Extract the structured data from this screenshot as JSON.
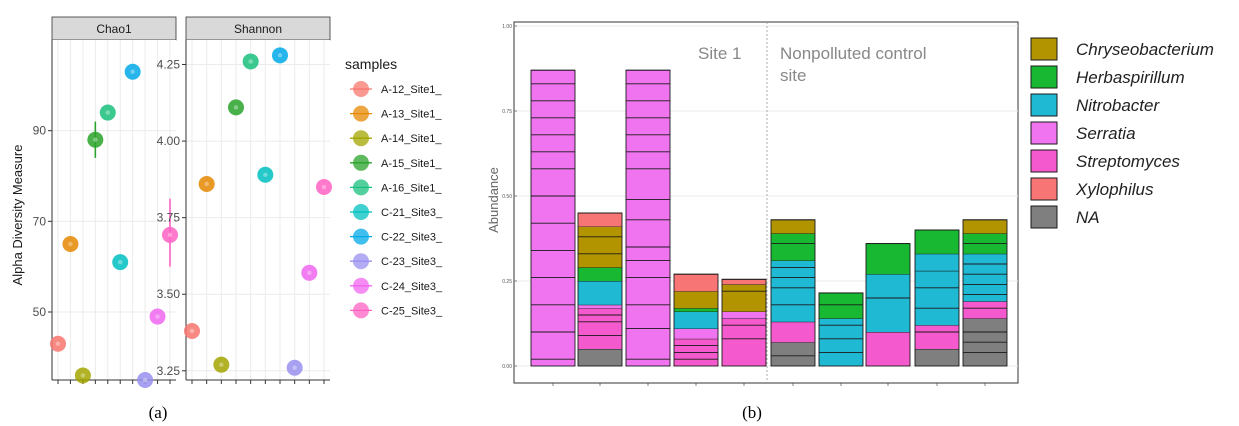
{
  "figure": {
    "label_a": "(a)",
    "label_b": "(b)"
  },
  "colors": {
    "strip_bg": "#d9d9d9",
    "grid": "#ebebeb",
    "samples": [
      "#f8766d",
      "#e58700",
      "#a3a500",
      "#2aa32a",
      "#19bf7d",
      "#00c0c0",
      "#00a9e8",
      "#9990f0",
      "#f066f0",
      "#ff61c3"
    ],
    "taxa": [
      "#b29400",
      "#19b833",
      "#1fb9d4",
      "#f074f0",
      "#f45acd",
      "#f87575",
      "#7f7f7f"
    ]
  },
  "chart_data": [
    {
      "type": "scatter",
      "title": "Chao1",
      "ylabel": "Alpha Diversity Measure",
      "ylim": [
        35,
        110
      ],
      "yticks": [
        50,
        70,
        90
      ],
      "legend_title": "samples",
      "samples": [
        "A-12_Site1_",
        "A-13_Site1_",
        "A-14_Site1_",
        "A-15_Site1_",
        "A-16_Site1_",
        "C-21_Site3_",
        "C-22_Site3_",
        "C-23_Site3_",
        "C-24_Site3_",
        "C-25_Site3_"
      ],
      "values": [
        43,
        65,
        36,
        88,
        94,
        61,
        103,
        35,
        49,
        67
      ],
      "error": [
        null,
        null,
        null,
        [
          84,
          92
        ],
        null,
        null,
        null,
        null,
        null,
        [
          60,
          75
        ]
      ]
    },
    {
      "type": "scatter",
      "title": "Shannon",
      "ylim": [
        3.22,
        4.33
      ],
      "yticks": [
        "3.25",
        "3.50",
        "3.75",
        "4.00",
        "4.25"
      ],
      "samples": [
        "A-12_Site1_",
        "A-13_Site1_",
        "A-14_Site1_",
        "A-15_Site1_",
        "A-16_Site1_",
        "C-21_Site3_",
        "C-22_Site3_",
        "C-23_Site3_",
        "C-24_Site3_",
        "C-25_Site3_"
      ],
      "values": [
        3.38,
        3.86,
        3.27,
        4.11,
        4.26,
        3.89,
        4.28,
        3.26,
        3.57,
        3.85
      ]
    },
    {
      "type": "bar",
      "stacked": true,
      "ylabel": "Abundance",
      "ylim": [
        0,
        1
      ],
      "yticks": [
        "0.00",
        "0.25",
        "0.50",
        "0.75",
        "1.00"
      ],
      "facets": [
        "Site 1",
        "Nonpolluted control\nsite"
      ],
      "legend": [
        "Chryseobacterium",
        "Herbaspirillum",
        "Nitrobacter",
        "Serratia",
        "Streptomyces",
        "Xylophilus",
        "NA"
      ],
      "bars": [
        {
          "facet": 0,
          "segments": [
            {
              "taxon": "Serratia",
              "cuts": [
                0.02,
                0.1,
                0.18,
                0.26,
                0.34,
                0.42,
                0.5,
                0.58,
                0.63,
                0.68,
                0.73,
                0.78,
                0.83,
                0.87
              ]
            }
          ]
        },
        {
          "facet": 0,
          "segments": [
            {
              "taxon": "NA",
              "cuts": [
                0.05
              ]
            },
            {
              "taxon": "Streptomyces",
              "cuts": [
                0.09,
                0.13,
                0.15,
                0.17
              ]
            },
            {
              "taxon": "Serratia",
              "cuts": [
                0.18
              ]
            },
            {
              "taxon": "Nitrobacter",
              "cuts": [
                0.25
              ]
            },
            {
              "taxon": "Herbaspirillum",
              "cuts": [
                0.29
              ]
            },
            {
              "taxon": "Chryseobacterium",
              "cuts": [
                0.33,
                0.38,
                0.41
              ]
            },
            {
              "taxon": "Xylophilus",
              "cuts": [
                0.45
              ]
            }
          ]
        },
        {
          "facet": 0,
          "segments": [
            {
              "taxon": "Serratia",
              "cuts": [
                0.02,
                0.11,
                0.18,
                0.26,
                0.31,
                0.35,
                0.43,
                0.49,
                0.58,
                0.63,
                0.68,
                0.73,
                0.78,
                0.83,
                0.87
              ]
            }
          ]
        },
        {
          "facet": 0,
          "segments": [
            {
              "taxon": "Streptomyces",
              "cuts": [
                0.02,
                0.04,
                0.06,
                0.08
              ]
            },
            {
              "taxon": "Serratia",
              "cuts": [
                0.11
              ]
            },
            {
              "taxon": "Nitrobacter",
              "cuts": [
                0.16
              ]
            },
            {
              "taxon": "Herbaspirillum",
              "cuts": [
                0.17
              ]
            },
            {
              "taxon": "Chryseobacterium",
              "cuts": [
                0.22
              ]
            },
            {
              "taxon": "Xylophilus",
              "cuts": [
                0.27
              ]
            }
          ]
        },
        {
          "facet": 0,
          "segments": [
            {
              "taxon": "Streptomyces",
              "cuts": [
                0.08,
                0.12,
                0.14
              ]
            },
            {
              "taxon": "Serratia",
              "cuts": [
                0.16
              ]
            },
            {
              "taxon": "Chryseobacterium",
              "cuts": [
                0.22,
                0.24
              ]
            },
            {
              "taxon": "Xylophilus",
              "cuts": [
                0.255
              ]
            }
          ]
        },
        {
          "facet": 1,
          "segments": [
            {
              "taxon": "NA",
              "cuts": [
                0.03,
                0.07
              ]
            },
            {
              "taxon": "Streptomyces",
              "cuts": [
                0.13
              ]
            },
            {
              "taxon": "Nitrobacter",
              "cuts": [
                0.18,
                0.23,
                0.26,
                0.29,
                0.31
              ]
            },
            {
              "taxon": "Herbaspirillum",
              "cuts": [
                0.36,
                0.39
              ]
            },
            {
              "taxon": "Chryseobacterium",
              "cuts": [
                0.43
              ]
            }
          ]
        },
        {
          "facet": 1,
          "segments": [
            {
              "taxon": "Nitrobacter",
              "cuts": [
                0.04,
                0.08,
                0.12,
                0.14
              ]
            },
            {
              "taxon": "Herbaspirillum",
              "cuts": [
                0.18,
                0.215
              ]
            }
          ]
        },
        {
          "facet": 1,
          "segments": [
            {
              "taxon": "Streptomyces",
              "cuts": [
                0.1
              ]
            },
            {
              "taxon": "Nitrobacter",
              "cuts": [
                0.2,
                0.27
              ]
            },
            {
              "taxon": "Herbaspirillum",
              "cuts": [
                0.36
              ]
            }
          ]
        },
        {
          "facet": 1,
          "segments": [
            {
              "taxon": "NA",
              "cuts": [
                0.05
              ]
            },
            {
              "taxon": "Streptomyces",
              "cuts": [
                0.1,
                0.12
              ]
            },
            {
              "taxon": "Nitrobacter",
              "cuts": [
                0.17,
                0.23,
                0.28
              ]
            },
            {
              "taxon": "Xylophilus",
              "cuts": [
                0.28
              ]
            },
            {
              "taxon": "Nitrobacter",
              "cuts": [
                0.33
              ]
            },
            {
              "taxon": "Herbaspirillum",
              "cuts": [
                0.4
              ]
            }
          ]
        },
        {
          "facet": 1,
          "segments": [
            {
              "taxon": "NA",
              "cuts": [
                0.04,
                0.07,
                0.1,
                0.14
              ]
            },
            {
              "taxon": "Streptomyces",
              "cuts": [
                0.17,
                0.19
              ]
            },
            {
              "taxon": "Nitrobacter",
              "cuts": [
                0.21,
                0.24,
                0.27,
                0.3,
                0.33
              ]
            },
            {
              "taxon": "Herbaspirillum",
              "cuts": [
                0.36,
                0.39
              ]
            },
            {
              "taxon": "Chryseobacterium",
              "cuts": [
                0.43
              ]
            }
          ]
        }
      ]
    }
  ]
}
